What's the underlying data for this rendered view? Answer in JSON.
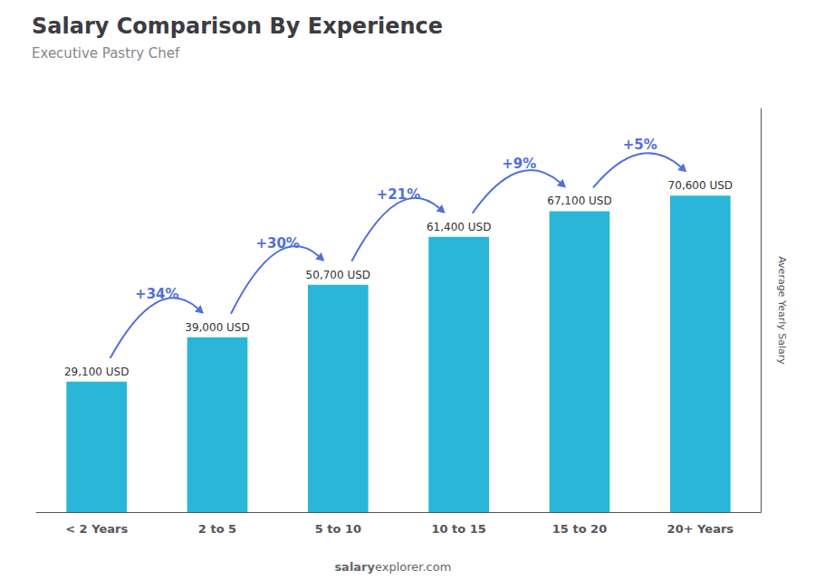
{
  "chart_data": {
    "type": "bar",
    "title": "Salary Comparison By Experience",
    "subtitle": "Executive Pastry Chef",
    "ylabel": "Average Yearly Salary",
    "categories": [
      "< 2 Years",
      "2 to 5",
      "5 to 10",
      "10 to 15",
      "15 to 20",
      "20+ Years"
    ],
    "values": [
      29100,
      39000,
      50700,
      61400,
      67100,
      70600
    ],
    "value_labels": [
      "29,100 USD",
      "39,000 USD",
      "50,700 USD",
      "61,400 USD",
      "67,100 USD",
      "70,600 USD"
    ],
    "data_labels": true,
    "pct_changes": [
      "+34%",
      "+30%",
      "+21%",
      "+9%",
      "+5%"
    ],
    "watermark": [
      "salary",
      "explorer.com"
    ],
    "color": "#29b6d8",
    "ylim": [
      0,
      90000
    ],
    "tick_labels": "x",
    "grid": false
  }
}
